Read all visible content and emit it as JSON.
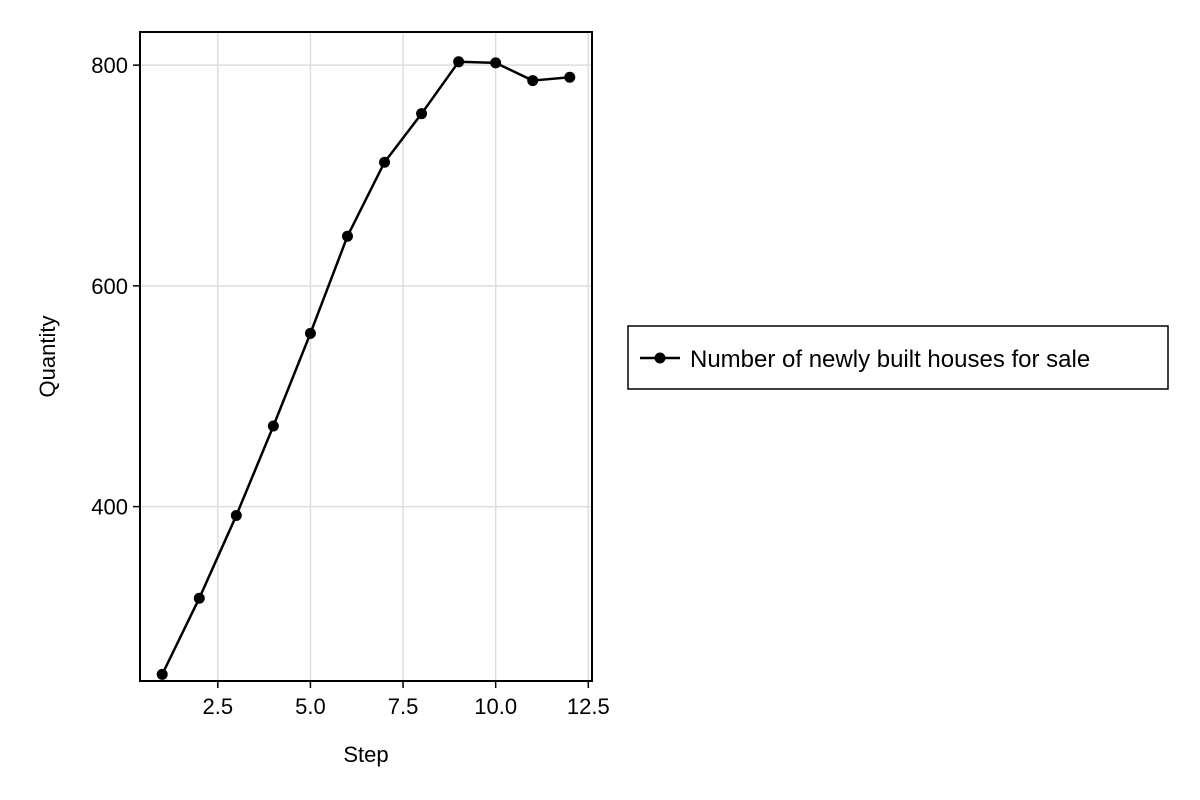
{
  "chart_data": {
    "type": "line",
    "title": "",
    "xlabel": "Step",
    "ylabel": "Quantity",
    "xlim": [
      0.4,
      12.6
    ],
    "ylim": [
      242,
      830
    ],
    "xticks": [
      2.5,
      5.0,
      7.5,
      10.0,
      12.5
    ],
    "xtick_labels": [
      "2.5",
      "5.0",
      "7.5",
      "10.0",
      "12.5"
    ],
    "yticks": [
      400,
      600,
      800
    ],
    "ytick_labels": [
      "400",
      "600",
      "800"
    ],
    "grid": true,
    "legend_position": "right",
    "x": [
      1,
      2,
      3,
      4,
      5,
      6,
      7,
      8,
      9,
      10,
      11,
      12
    ],
    "series": [
      {
        "name": "Number of newly built houses for sale",
        "color": "#000000",
        "marker": "circle",
        "values": [
          248,
          317,
          392,
          473,
          557,
          645,
          712,
          756,
          803,
          802,
          786,
          789
        ]
      }
    ]
  }
}
